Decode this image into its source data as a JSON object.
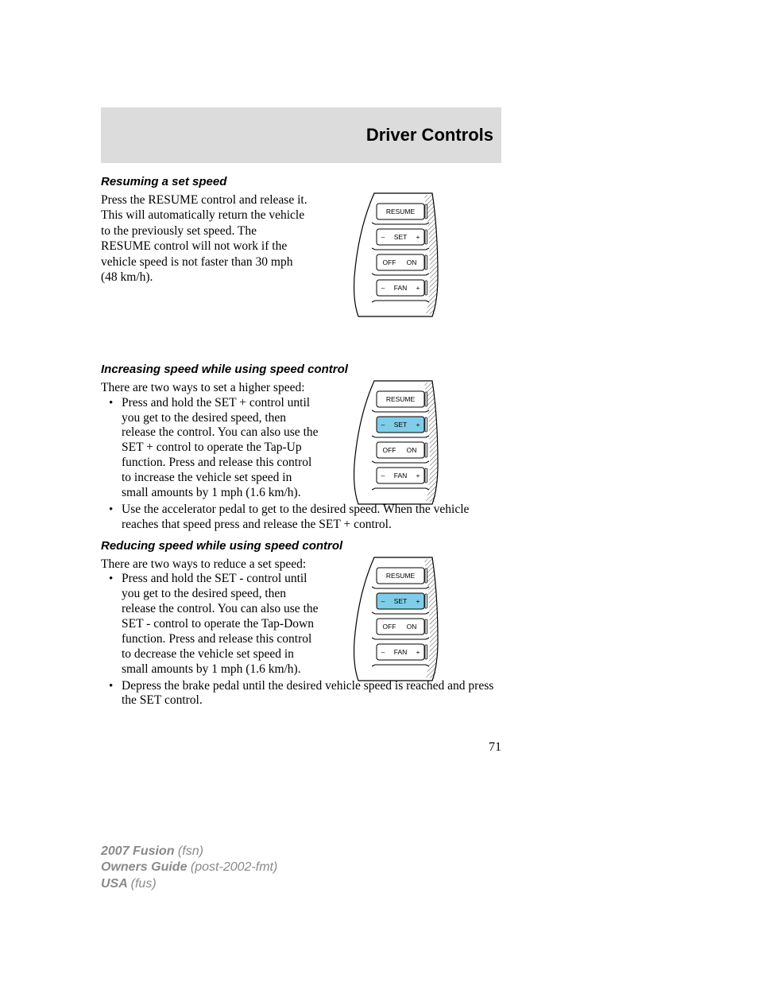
{
  "header": {
    "title": "Driver Controls"
  },
  "sections": {
    "resume": {
      "title": "Resuming a set speed",
      "body": "Press the RESUME control and release it. This will automatically return the vehicle to the previously set speed. The RESUME control will not work if the vehicle speed is not faster than 30 mph (48 km/h)."
    },
    "increase": {
      "title": "Increasing speed while using speed control",
      "intro": "There are two ways to set a higher speed:",
      "b1": "Press and hold the SET + control until you get to the desired speed, then release the control. You can also use the SET + control to operate the Tap-Up function. Press and release this control to increase the vehicle set speed in small amounts by 1 mph (1.6 km/h).",
      "b2": "Use the accelerator pedal to get to the desired speed. When the vehicle reaches that speed press and release the SET + control."
    },
    "reduce": {
      "title": "Reducing speed while using speed control",
      "intro": "There are two ways to reduce a set speed:",
      "b1": "Press and hold the SET - control until you get to the desired speed, then release the control. You can also use the SET - control to operate the Tap-Down function. Press and release this control to decrease the vehicle set speed in small amounts by 1 mph (1.6 km/h).",
      "b2": "Depress the brake pedal until the desired vehicle speed is reached and press the SET control."
    }
  },
  "diagram_labels": {
    "resume": "RESUME",
    "set": "SET",
    "set_minus": "–",
    "set_plus": "+",
    "off": "OFF",
    "on": "ON",
    "fan": "FAN",
    "fan_minus": "–",
    "fan_plus": "+"
  },
  "diagram_colors": {
    "outline": "#000000",
    "hatch": "#000000",
    "highlight": "#7fcde8",
    "none": "#ffffff"
  },
  "diagrams": {
    "d1": {
      "highlight": "none"
    },
    "d2": {
      "highlight": "set"
    },
    "d3": {
      "highlight": "set"
    }
  },
  "page_number": "71",
  "footer": {
    "l1a": "2007 Fusion ",
    "l1b": "(fsn)",
    "l2a": "Owners Guide ",
    "l2b": "(post-2002-fmt)",
    "l3a": "USA ",
    "l3b": "(fus)"
  }
}
